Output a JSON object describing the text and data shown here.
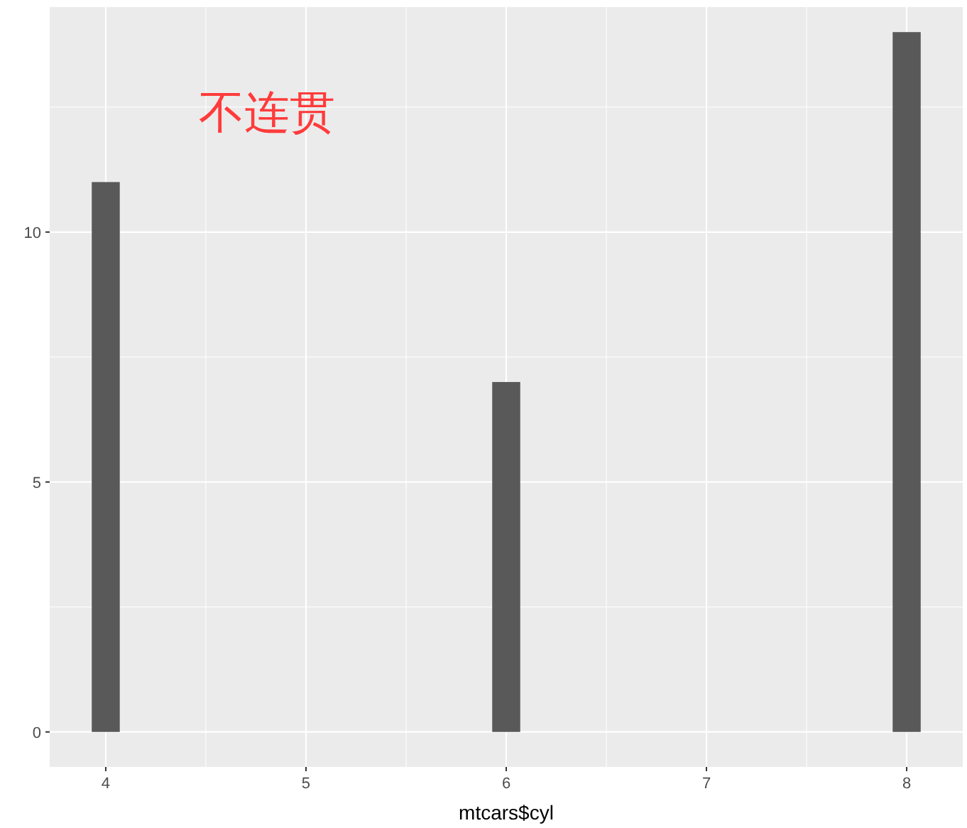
{
  "chart_data": {
    "type": "bar",
    "x": [
      4,
      6,
      8
    ],
    "values": [
      11,
      7,
      14
    ],
    "color": "#595959",
    "xlabel": "mtcars$cyl",
    "annotations": [
      "不连贯"
    ],
    "xlim": [
      3.72,
      8.28
    ],
    "ylim": [
      -0.7,
      14.5
    ],
    "xticks": [
      4,
      5,
      6,
      7,
      8
    ],
    "yticks": [
      0,
      5,
      10
    ],
    "grid": true
  }
}
